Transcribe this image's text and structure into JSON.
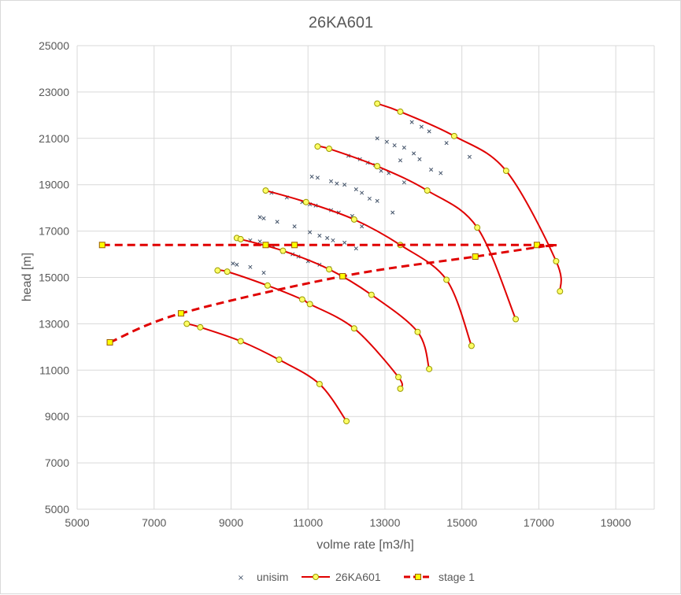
{
  "chart_data": {
    "type": "scatter",
    "title": "26KA601",
    "xlabel": "volme rate [m3/h]",
    "ylabel": "head [m]",
    "xlim": [
      5000,
      20000
    ],
    "ylim": [
      5000,
      25000
    ],
    "xticks": [
      "5000",
      "7000",
      "9000",
      "11000",
      "13000",
      "15000",
      "17000",
      "19000"
    ],
    "yticks": [
      "5000",
      "7000",
      "9000",
      "11000",
      "13000",
      "15000",
      "17000",
      "19000",
      "21000",
      "23000",
      "25000"
    ],
    "grid": true,
    "legend_position": "bottom",
    "colors": {
      "unisim": "#44546a",
      "curve": "#e00000",
      "curve_marker_fill": "#ffff66",
      "stage_marker_fill": "#ffff00",
      "marker_edge": "#9a9a00",
      "grid": "#d9d9d9",
      "text": "#595959"
    },
    "legend": [
      "unisim",
      "26KA601",
      "stage 1"
    ],
    "unisim": [
      [
        12800,
        21000
      ],
      [
        13050,
        20850
      ],
      [
        13250,
        20700
      ],
      [
        13500,
        20600
      ],
      [
        13700,
        21700
      ],
      [
        13950,
        21500
      ],
      [
        14150,
        21300
      ],
      [
        14600,
        20800
      ],
      [
        15200,
        20200
      ],
      [
        12050,
        20250
      ],
      [
        12350,
        20100
      ],
      [
        12550,
        19950
      ],
      [
        12750,
        19850
      ],
      [
        12900,
        19600
      ],
      [
        13100,
        19500
      ],
      [
        13400,
        20050
      ],
      [
        13750,
        20350
      ],
      [
        13900,
        20100
      ],
      [
        14200,
        19650
      ],
      [
        14450,
        19500
      ],
      [
        13500,
        19100
      ],
      [
        11100,
        19350
      ],
      [
        11250,
        19300
      ],
      [
        11600,
        19150
      ],
      [
        11750,
        19050
      ],
      [
        11950,
        19000
      ],
      [
        12250,
        18800
      ],
      [
        12400,
        18650
      ],
      [
        12600,
        18400
      ],
      [
        12800,
        18300
      ],
      [
        13200,
        17800
      ],
      [
        10050,
        18650
      ],
      [
        10450,
        18450
      ],
      [
        10850,
        18250
      ],
      [
        11050,
        18150
      ],
      [
        11200,
        18100
      ],
      [
        11600,
        17900
      ],
      [
        11800,
        17800
      ],
      [
        12150,
        17650
      ],
      [
        12400,
        17200
      ],
      [
        9750,
        17600
      ],
      [
        9850,
        17550
      ],
      [
        10200,
        17400
      ],
      [
        10650,
        17200
      ],
      [
        11050,
        16950
      ],
      [
        11300,
        16800
      ],
      [
        11500,
        16700
      ],
      [
        11650,
        16600
      ],
      [
        11950,
        16500
      ],
      [
        12250,
        16250
      ],
      [
        9500,
        16600
      ],
      [
        9750,
        16550
      ],
      [
        10100,
        16350
      ],
      [
        10350,
        16100
      ],
      [
        10600,
        16000
      ],
      [
        10750,
        15900
      ],
      [
        11000,
        15700
      ],
      [
        11300,
        15550
      ],
      [
        11550,
        15400
      ],
      [
        9050,
        15600
      ],
      [
        9150,
        15550
      ],
      [
        9500,
        15450
      ],
      [
        9850,
        15200
      ]
    ],
    "series": [
      {
        "name": "26KA601",
        "points": [
          [
            7850,
            13000
          ],
          [
            8200,
            12850
          ],
          [
            9250,
            12250
          ],
          [
            10250,
            11450
          ],
          [
            11300,
            10400
          ],
          [
            12000,
            8800
          ]
        ]
      },
      {
        "name": "26KA601",
        "points": [
          [
            8650,
            15300
          ],
          [
            8900,
            15250
          ],
          [
            9950,
            14650
          ],
          [
            10850,
            14050
          ],
          [
            11050,
            13850
          ],
          [
            12200,
            12800
          ],
          [
            13350,
            10700
          ],
          [
            13400,
            10200
          ]
        ]
      },
      {
        "name": "26KA601",
        "points": [
          [
            9150,
            16700
          ],
          [
            9250,
            16650
          ],
          [
            10350,
            16150
          ],
          [
            11550,
            15350
          ],
          [
            12650,
            14250
          ],
          [
            13850,
            12650
          ],
          [
            14150,
            11050
          ]
        ]
      },
      {
        "name": "26KA601",
        "points": [
          [
            9900,
            18750
          ],
          [
            10950,
            18250
          ],
          [
            12200,
            17500
          ],
          [
            13400,
            16400
          ],
          [
            14600,
            14900
          ],
          [
            15250,
            12050
          ]
        ]
      },
      {
        "name": "26KA601",
        "points": [
          [
            11250,
            20650
          ],
          [
            11550,
            20550
          ],
          [
            12800,
            19800
          ],
          [
            14100,
            18750
          ],
          [
            15400,
            17150
          ],
          [
            16400,
            13200
          ]
        ]
      },
      {
        "name": "26KA601",
        "points": [
          [
            12800,
            22500
          ],
          [
            13400,
            22150
          ],
          [
            14800,
            21100
          ],
          [
            16150,
            19600
          ],
          [
            17450,
            15700
          ],
          [
            17550,
            14400
          ]
        ]
      }
    ],
    "stage": [
      {
        "name": "stage 1",
        "points": [
          [
            5650,
            16400
          ],
          [
            9900,
            16400
          ],
          [
            10650,
            16400
          ],
          [
            16950,
            16400
          ],
          [
            17150,
            16350
          ]
        ]
      },
      {
        "name": "stage 1",
        "points": [
          [
            5850,
            12200
          ],
          [
            7700,
            13450
          ],
          [
            11900,
            15050
          ],
          [
            15350,
            15900
          ],
          [
            17150,
            16350
          ]
        ]
      }
    ]
  }
}
